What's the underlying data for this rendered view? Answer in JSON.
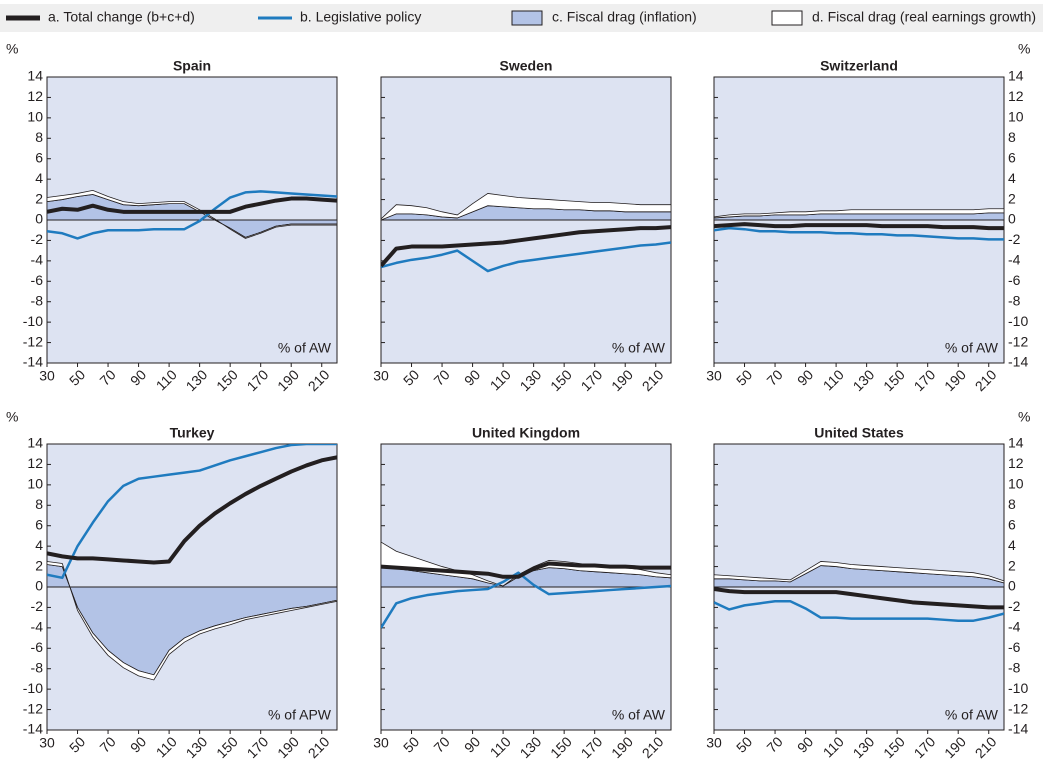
{
  "y_unit": "%",
  "legend": [
    {
      "name": "a. Total change (b+c+d)",
      "color": "#231f20",
      "style": "line"
    },
    {
      "name": "b. Legislative policy",
      "color": "#1f7bbf",
      "style": "line"
    },
    {
      "name": "c. Fiscal drag (inflation)",
      "color": "#b3c3e6",
      "style": "area"
    },
    {
      "name": "d. Fiscal drag (real earnings growth)",
      "color": "#ffffff",
      "style": "area"
    }
  ],
  "chart_data": [
    {
      "type": "line",
      "title": "Spain",
      "note": "% of AW",
      "x": [
        30,
        40,
        50,
        60,
        70,
        80,
        90,
        100,
        110,
        120,
        130,
        140,
        150,
        160,
        170,
        180,
        190,
        200,
        210,
        220
      ],
      "series": [
        {
          "values": [
            0.8,
            1.1,
            1.0,
            1.4,
            1.0,
            0.8,
            0.8,
            0.8,
            0.8,
            0.8,
            0.8,
            0.8,
            0.8,
            1.3,
            1.6,
            1.9,
            2.1,
            2.1,
            2.0,
            1.9
          ]
        },
        {
          "values": [
            -1.1,
            -1.3,
            -1.8,
            -1.3,
            -1.0,
            -1.0,
            -1.0,
            -0.9,
            -0.9,
            -0.9,
            -0.1,
            1.1,
            2.2,
            2.7,
            2.8,
            2.7,
            2.6,
            2.5,
            2.4,
            2.3
          ]
        },
        {
          "values": [
            1.8,
            2.0,
            2.3,
            2.5,
            2.0,
            1.5,
            1.4,
            1.5,
            1.6,
            1.6,
            0.8,
            0,
            -0.8,
            -1.7,
            -1.2,
            -0.6,
            -0.4,
            -0.4,
            -0.4,
            -0.4
          ]
        },
        {
          "values": [
            0.4,
            0.4,
            0.3,
            0.4,
            0.3,
            0.3,
            0.2,
            0.2,
            0.2,
            0.2,
            0.2,
            0.1,
            -0.1,
            -0.1,
            -0.1,
            -0.1,
            -0.1,
            -0.1,
            -0.1,
            -0.1
          ]
        }
      ],
      "xlim": [
        30,
        220
      ],
      "ylim": [
        -14,
        14
      ],
      "xticks": [
        30,
        50,
        70,
        90,
        110,
        130,
        150,
        170,
        190,
        210
      ],
      "yticks": [
        -14,
        -12,
        -10,
        -8,
        -6,
        -4,
        -2,
        0,
        2,
        4,
        6,
        8,
        10,
        12,
        14
      ]
    },
    {
      "type": "line",
      "title": "Sweden",
      "note": "% of AW",
      "x": [
        30,
        40,
        50,
        60,
        70,
        80,
        90,
        100,
        110,
        120,
        130,
        140,
        150,
        160,
        170,
        180,
        190,
        200,
        210,
        220
      ],
      "series": [
        {
          "values": [
            -4.5,
            -2.8,
            -2.6,
            -2.6,
            -2.6,
            -2.5,
            -2.4,
            -2.3,
            -2.2,
            -2.0,
            -1.8,
            -1.6,
            -1.4,
            -1.2,
            -1.1,
            -1.0,
            -0.9,
            -0.8,
            -0.8,
            -0.7
          ]
        },
        {
          "values": [
            -4.6,
            -4.2,
            -3.9,
            -3.7,
            -3.4,
            -3.0,
            -4.0,
            -5.0,
            -4.5,
            -4.1,
            -3.9,
            -3.7,
            -3.5,
            -3.3,
            -3.1,
            -2.9,
            -2.7,
            -2.5,
            -2.4,
            -2.2
          ]
        },
        {
          "values": [
            0,
            0.6,
            0.6,
            0.5,
            0.3,
            0.2,
            0.8,
            1.4,
            1.3,
            1.2,
            1.1,
            1.1,
            1.0,
            1.0,
            0.9,
            0.9,
            0.8,
            0.8,
            0.8,
            0.8
          ]
        },
        {
          "values": [
            0.1,
            0.9,
            0.8,
            0.7,
            0.5,
            0.3,
            0.8,
            1.2,
            1.1,
            1.0,
            1.0,
            0.9,
            0.9,
            0.8,
            0.8,
            0.8,
            0.8,
            0.7,
            0.7,
            0.7
          ]
        }
      ],
      "xlim": [
        30,
        220
      ],
      "ylim": [
        -14,
        14
      ],
      "xticks": [
        30,
        50,
        70,
        90,
        110,
        130,
        150,
        170,
        190,
        210
      ],
      "yticks": [
        -14,
        -12,
        -10,
        -8,
        -6,
        -4,
        -2,
        0,
        2,
        4,
        6,
        8,
        10,
        12,
        14
      ]
    },
    {
      "type": "line",
      "title": "Switzerland",
      "note": "% of AW",
      "x": [
        30,
        40,
        50,
        60,
        70,
        80,
        90,
        100,
        110,
        120,
        130,
        140,
        150,
        160,
        170,
        180,
        190,
        200,
        210,
        220
      ],
      "series": [
        {
          "values": [
            -0.6,
            -0.5,
            -0.4,
            -0.5,
            -0.6,
            -0.6,
            -0.5,
            -0.5,
            -0.5,
            -0.5,
            -0.5,
            -0.6,
            -0.6,
            -0.6,
            -0.6,
            -0.7,
            -0.7,
            -0.7,
            -0.8,
            -0.8
          ]
        },
        {
          "values": [
            -1.0,
            -0.8,
            -0.9,
            -1.1,
            -1.1,
            -1.2,
            -1.2,
            -1.2,
            -1.3,
            -1.3,
            -1.4,
            -1.4,
            -1.5,
            -1.5,
            -1.6,
            -1.7,
            -1.8,
            -1.8,
            -1.9,
            -1.9
          ]
        },
        {
          "values": [
            0.2,
            0.3,
            0.4,
            0.4,
            0.5,
            0.5,
            0.5,
            0.6,
            0.6,
            0.6,
            0.6,
            0.6,
            0.6,
            0.6,
            0.6,
            0.6,
            0.6,
            0.6,
            0.7,
            0.7
          ]
        },
        {
          "values": [
            0.1,
            0.2,
            0.2,
            0.2,
            0.2,
            0.3,
            0.3,
            0.3,
            0.3,
            0.4,
            0.4,
            0.4,
            0.4,
            0.4,
            0.4,
            0.4,
            0.4,
            0.4,
            0.4,
            0.4
          ]
        }
      ],
      "xlim": [
        30,
        220
      ],
      "ylim": [
        -14,
        14
      ],
      "xticks": [
        30,
        50,
        70,
        90,
        110,
        130,
        150,
        170,
        190,
        210
      ],
      "yticks": [
        -14,
        -12,
        -10,
        -8,
        -6,
        -4,
        -2,
        0,
        2,
        4,
        6,
        8,
        10,
        12,
        14
      ]
    },
    {
      "type": "line",
      "title": "Turkey",
      "note": "% of APW",
      "x": [
        30,
        40,
        50,
        60,
        70,
        80,
        90,
        100,
        110,
        120,
        130,
        140,
        150,
        160,
        170,
        180,
        190,
        200,
        210,
        220
      ],
      "series": [
        {
          "values": [
            3.3,
            3.0,
            2.8,
            2.8,
            2.7,
            2.6,
            2.5,
            2.4,
            2.5,
            4.5,
            6.0,
            7.2,
            8.2,
            9.1,
            9.9,
            10.6,
            11.3,
            11.9,
            12.4,
            12.7
          ]
        },
        {
          "values": [
            1.2,
            0.9,
            4.0,
            6.3,
            8.4,
            9.9,
            10.6,
            10.8,
            11.0,
            11.2,
            11.4,
            11.9,
            12.4,
            12.8,
            13.2,
            13.6,
            13.9,
            14.0,
            14.0,
            14.0
          ]
        },
        {
          "values": [
            2.2,
            2.0,
            -2.0,
            -4.5,
            -6.2,
            -7.4,
            -8.2,
            -8.6,
            -6.2,
            -5.0,
            -4.3,
            -3.8,
            -3.4,
            -3.0,
            -2.7,
            -2.4,
            -2.1,
            -1.9,
            -1.6,
            -1.3
          ]
        },
        {
          "values": [
            0.3,
            0.3,
            -0.3,
            -0.4,
            -0.5,
            -0.5,
            -0.5,
            -0.5,
            -0.4,
            -0.4,
            -0.3,
            -0.3,
            -0.3,
            -0.2,
            -0.2,
            -0.2,
            -0.2,
            -0.1,
            -0.1,
            -0.1
          ]
        }
      ],
      "xlim": [
        30,
        220
      ],
      "ylim": [
        -14,
        14
      ],
      "xticks": [
        30,
        50,
        70,
        90,
        110,
        130,
        150,
        170,
        190,
        210
      ],
      "yticks": [
        -14,
        -12,
        -10,
        -8,
        -6,
        -4,
        -2,
        0,
        2,
        4,
        6,
        8,
        10,
        12,
        14
      ]
    },
    {
      "type": "line",
      "title": "United Kingdom",
      "note": "% of AW",
      "x": [
        30,
        40,
        50,
        60,
        70,
        80,
        90,
        100,
        110,
        120,
        130,
        140,
        150,
        160,
        170,
        180,
        190,
        200,
        210,
        220
      ],
      "series": [
        {
          "values": [
            2.0,
            1.9,
            1.8,
            1.7,
            1.6,
            1.5,
            1.4,
            1.3,
            1.0,
            1.0,
            1.8,
            2.3,
            2.2,
            2.1,
            2.1,
            2.0,
            2.0,
            1.9,
            1.9,
            1.9
          ]
        },
        {
          "values": [
            -4.0,
            -1.6,
            -1.1,
            -0.8,
            -0.6,
            -0.4,
            -0.3,
            -0.2,
            0.5,
            1.4,
            0.2,
            -0.7,
            -0.6,
            -0.5,
            -0.4,
            -0.3,
            -0.2,
            -0.1,
            0,
            0.1
          ]
        },
        {
          "values": [
            2.0,
            1.8,
            1.6,
            1.4,
            1.2,
            1.0,
            0.8,
            0.4,
            0.1,
            1.0,
            1.6,
            1.9,
            1.8,
            1.6,
            1.5,
            1.4,
            1.3,
            1.2,
            1.0,
            0.9
          ]
        },
        {
          "values": [
            2.4,
            1.7,
            1.4,
            1.1,
            0.8,
            0.6,
            0.4,
            0.2,
            0.0,
            0.2,
            0.4,
            0.7,
            0.7,
            0.7,
            0.6,
            0.6,
            0.6,
            0.5,
            0.4,
            0.3
          ]
        }
      ],
      "xlim": [
        30,
        220
      ],
      "ylim": [
        -14,
        14
      ],
      "xticks": [
        30,
        50,
        70,
        90,
        110,
        130,
        150,
        170,
        190,
        210
      ],
      "yticks": [
        -14,
        -12,
        -10,
        -8,
        -6,
        -4,
        -2,
        0,
        2,
        4,
        6,
        8,
        10,
        12,
        14
      ]
    },
    {
      "type": "line",
      "title": "United States",
      "note": "% of AW",
      "x": [
        30,
        40,
        50,
        60,
        70,
        80,
        90,
        100,
        110,
        120,
        130,
        140,
        150,
        160,
        170,
        180,
        190,
        200,
        210,
        220
      ],
      "series": [
        {
          "values": [
            -0.2,
            -0.4,
            -0.5,
            -0.5,
            -0.5,
            -0.5,
            -0.5,
            -0.5,
            -0.5,
            -0.7,
            -0.9,
            -1.1,
            -1.3,
            -1.5,
            -1.6,
            -1.7,
            -1.8,
            -1.9,
            -2.0,
            -2.0
          ]
        },
        {
          "values": [
            -1.5,
            -2.2,
            -1.8,
            -1.6,
            -1.4,
            -1.4,
            -2.1,
            -3.0,
            -3.0,
            -3.1,
            -3.1,
            -3.1,
            -3.1,
            -3.1,
            -3.1,
            -3.2,
            -3.3,
            -3.3,
            -3.0,
            -2.6
          ]
        },
        {
          "values": [
            0.8,
            0.8,
            0.7,
            0.6,
            0.6,
            0.5,
            1.3,
            2.1,
            2.0,
            1.8,
            1.7,
            1.6,
            1.5,
            1.4,
            1.3,
            1.2,
            1.1,
            1.0,
            0.8,
            0.4
          ]
        },
        {
          "values": [
            0.4,
            0.3,
            0.3,
            0.3,
            0.2,
            0.2,
            0.3,
            0.4,
            0.4,
            0.4,
            0.4,
            0.4,
            0.4,
            0.4,
            0.4,
            0.4,
            0.4,
            0.4,
            0.3,
            0.2
          ]
        }
      ],
      "xlim": [
        30,
        220
      ],
      "ylim": [
        -14,
        14
      ],
      "xticks": [
        30,
        50,
        70,
        90,
        110,
        130,
        150,
        170,
        190,
        210
      ],
      "yticks": [
        -14,
        -12,
        -10,
        -8,
        -6,
        -4,
        -2,
        0,
        2,
        4,
        6,
        8,
        10,
        12,
        14
      ]
    }
  ]
}
